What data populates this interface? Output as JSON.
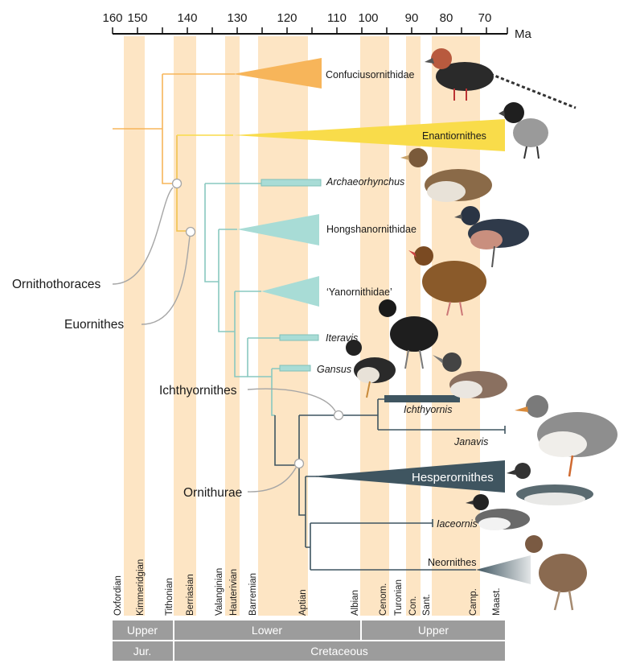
{
  "axis": {
    "unit": "Ma",
    "ticks": [
      "160",
      "150",
      "140",
      "130",
      "120",
      "110",
      "100",
      "90",
      "80",
      "70"
    ]
  },
  "stages": [
    "Oxfordian",
    "Kimmeridgian",
    "Tithonian",
    "Berriasian",
    "Valanginian",
    "Hauterivian",
    "Barremian",
    "Aptian",
    "Albian",
    "Cenom.",
    "Turonian",
    "Con.",
    "Sant.",
    "Camp.",
    "Maast."
  ],
  "epochs": [
    "Upper",
    "Lower",
    "Upper"
  ],
  "periods": [
    "Jur.",
    "Cretaceous"
  ],
  "clades": {
    "confuciusornithidae": "Confuciusornithidae",
    "enantiornithes": "Enantiornithes",
    "archaeorhynchus": "Archaeorhynchus",
    "hongshanornithidae": "Hongshanornithidae",
    "yanornithidae": "‘Yanornithidae’",
    "iteravis": "Iteravis",
    "gansus": "Gansus",
    "ichthyornis": "Ichthyornis",
    "janavis": "Janavis",
    "hesperornithes": "Hesperornithes",
    "iaceornis": "Iaceornis",
    "neornithes": "Neornithes"
  },
  "nodes": {
    "ornithothoraces": "Ornithothoraces",
    "euornithes": "Euornithes",
    "ichthyornithes": "Ichthyornithes",
    "ornithurae": "Ornithurae"
  },
  "colors": {
    "stage_band": "#fde5c4",
    "confuciusornithidae": "#f7b55a",
    "enantiornithes": "#f9dc4a",
    "euornithes": "#a8dcd6",
    "ornithurae": "#3f5560",
    "node_line": "#a6a6a6",
    "chrono_bar": "#9c9c9c"
  }
}
